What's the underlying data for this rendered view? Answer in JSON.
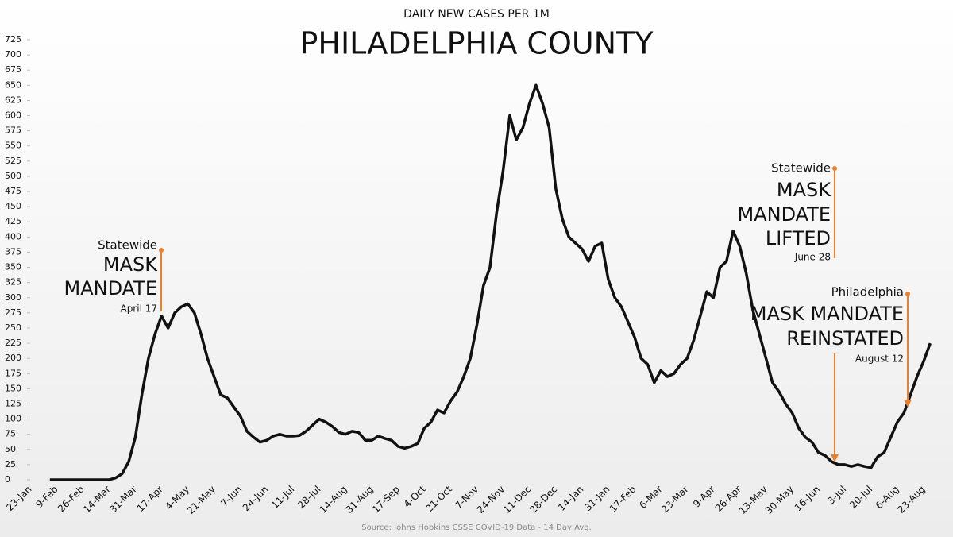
{
  "chart_data": {
    "type": "line",
    "subtitle": "DAILY NEW CASES PER 1M",
    "title": "PHILADELPHIA COUNTY",
    "source": "Source: Johns Hopkins CSSE COVID-19 Data - 14 Day Avg.",
    "categories": [
      "23-Jan",
      null,
      null,
      null,
      "9-Feb",
      null,
      null,
      null,
      "26-Feb",
      null,
      null,
      null,
      "14-Mar",
      null,
      null,
      null,
      "31-Mar",
      null,
      null,
      null,
      "17-Apr",
      null,
      null,
      null,
      "4-May",
      null,
      null,
      null,
      "21-May",
      null,
      null,
      null,
      "7-Jun",
      null,
      null,
      null,
      "24-Jun",
      null,
      null,
      null,
      "11-Jul",
      null,
      null,
      null,
      "28-Jul",
      null,
      null,
      null,
      "14-Aug",
      null,
      null,
      null,
      "31-Aug",
      null,
      null,
      null,
      "17-Sep",
      null,
      null,
      null,
      "4-Oct",
      null,
      null,
      null,
      "21-Oct",
      null,
      null,
      null,
      "7-Nov",
      null,
      null,
      null,
      "24-Nov",
      null,
      null,
      null,
      "11-Dec",
      null,
      null,
      null,
      "28-Dec",
      null,
      null,
      null,
      "14-Jan",
      null,
      null,
      null,
      "31-Jan",
      null,
      null,
      null,
      "17-Feb",
      null,
      null,
      null,
      "6-Mar",
      null,
      null,
      null,
      "23-Mar",
      null,
      null,
      null,
      "9-Apr",
      null,
      null,
      null,
      "26-Apr",
      null,
      null,
      null,
      "13-May",
      null,
      null,
      null,
      "30-May",
      null,
      null,
      null,
      "16-Jun",
      null,
      null,
      null,
      "3-Jul",
      null,
      null,
      null,
      "20-Jul",
      null,
      null,
      null,
      "6-Aug",
      null,
      null,
      null,
      "23-Aug",
      null
    ],
    "series": [
      {
        "name": "Daily new cases per 1M",
        "color": "#111111",
        "values": [
          null,
          null,
          null,
          0,
          0,
          0,
          0,
          0,
          0,
          0,
          0,
          0,
          0,
          3,
          10,
          30,
          70,
          140,
          200,
          240,
          270,
          250,
          275,
          285,
          290,
          275,
          240,
          200,
          170,
          140,
          135,
          120,
          105,
          80,
          70,
          62,
          65,
          72,
          75,
          72,
          72,
          73,
          80,
          90,
          100,
          95,
          88,
          78,
          75,
          80,
          78,
          65,
          65,
          72,
          68,
          65,
          55,
          52,
          55,
          60,
          85,
          95,
          115,
          110,
          130,
          145,
          170,
          200,
          255,
          320,
          350,
          440,
          510,
          600,
          560,
          580,
          620,
          650,
          620,
          580,
          480,
          430,
          400,
          390,
          380,
          360,
          385,
          390,
          330,
          300,
          285,
          260,
          235,
          200,
          190,
          160,
          180,
          170,
          175,
          190,
          200,
          230,
          270,
          310,
          300,
          350,
          360,
          410,
          385,
          340,
          280,
          240,
          200,
          160,
          145,
          125,
          110,
          85,
          70,
          62,
          45,
          40,
          30,
          25,
          25,
          22,
          25,
          22,
          20,
          38,
          45,
          70,
          95,
          110,
          140,
          170,
          195,
          225
        ]
      }
    ],
    "ylim": [
      0,
      725
    ],
    "yticks": [
      0,
      25,
      50,
      75,
      100,
      125,
      150,
      175,
      200,
      225,
      250,
      275,
      300,
      325,
      350,
      375,
      400,
      425,
      450,
      475,
      500,
      525,
      550,
      575,
      600,
      625,
      650,
      675,
      700,
      725
    ],
    "annotations": [
      {
        "lines": [
          "Statewide",
          "MASK",
          "MANDATE"
        ],
        "date": "April 17"
      },
      {
        "lines": [
          "Statewide",
          "MASK",
          "MANDATE",
          "LIFTED"
        ],
        "date": "June 28"
      },
      {
        "lines": [
          "Philadelphia",
          "MASK MANDATE",
          "REINSTATED"
        ],
        "date": "August 12"
      }
    ],
    "annotation_color": "#e8812f"
  }
}
